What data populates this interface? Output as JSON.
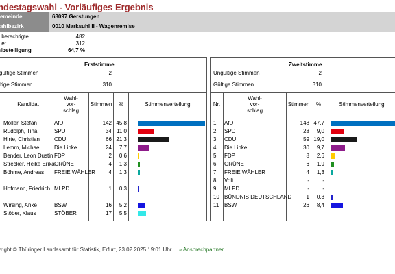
{
  "title": "ndestagswahl - Vorläufiges Ergebnis",
  "header": {
    "gemeinde_label": "emeinde",
    "gemeinde_value": "63097   Gerstungen",
    "bezirk_label": "ahlbezirk",
    "bezirk_value": "0010   Marksuhl II - Wagenremise"
  },
  "stats": [
    {
      "label": "hlberechtigte",
      "value": "482"
    },
    {
      "label": "hler",
      "value": "312"
    },
    {
      "label": "hlbeteiligung",
      "value": "64,7 %"
    }
  ],
  "erststimme": {
    "title": "Erststimme",
    "invalid_label": "gültige Stimmen",
    "invalid_value": "2",
    "valid_label": "ltige Stimmen",
    "valid_value": "310",
    "columns": {
      "kandidat": "Kandidat",
      "wahl1": "Wahl-",
      "wahl2": "vor-",
      "wahl3": "schlag",
      "stimmen": "Stimmen",
      "pct": "%",
      "verteilung": "Stimmenverteilung"
    },
    "rows": [
      {
        "name": "Möller, Stefan",
        "party": "AfD",
        "votes": "142",
        "pct": "45,8",
        "p": 45.8,
        "color": "#0070c0"
      },
      {
        "name": "Rudolph, Tina",
        "party": "SPD",
        "votes": "34",
        "pct": "11,0",
        "p": 11.0,
        "color": "#e3000f"
      },
      {
        "name": "Hirte, Christian",
        "party": "CDU",
        "votes": "66",
        "pct": "21,3",
        "p": 21.3,
        "color": "#1a1a1a"
      },
      {
        "name": "Lemm, Michael",
        "party": "Die Linke",
        "votes": "24",
        "pct": "7,7",
        "p": 7.7,
        "color": "#8e1c8a"
      },
      {
        "name": "Bender, Leon Dustin",
        "party": "FDP",
        "votes": "2",
        "pct": "0,6",
        "p": 0.6,
        "color": "#ffcc00"
      },
      {
        "name": "Strecker, Heike Erika",
        "party": "GRÜNE",
        "votes": "4",
        "pct": "1,3",
        "p": 1.3,
        "color": "#1f8f1f"
      },
      {
        "name": "Böhme, Andreas",
        "party": "FREIE WÄHLER",
        "votes": "4",
        "pct": "1,3",
        "p": 1.3,
        "color": "#0aa89e"
      },
      {
        "name": "",
        "party": "",
        "votes": "",
        "pct": "",
        "p": 0,
        "color": "#ffffff"
      },
      {
        "name": "Hofmann, Friedrich",
        "party": "MLPD",
        "votes": "1",
        "pct": "0,3",
        "p": 0.3,
        "color": "#2222cc"
      },
      {
        "name": "",
        "party": "",
        "votes": "",
        "pct": "",
        "p": 0,
        "color": "#ffffff"
      },
      {
        "name": "Wirsing, Anke",
        "party": "BSW",
        "votes": "16",
        "pct": "5,2",
        "p": 5.2,
        "color": "#1515e0"
      },
      {
        "name": "Stöber, Klaus",
        "party": "STÖBER",
        "votes": "17",
        "pct": "5,5",
        "p": 5.5,
        "color": "#33e8e8"
      }
    ]
  },
  "zweitstimme": {
    "title": "Zweitstimme",
    "invalid_label": "Ungültige Stimmen",
    "invalid_value": "2",
    "valid_label": "Gültige Stimmen",
    "valid_value": "310",
    "columns": {
      "nr": "Nr.",
      "wahl1": "Wahl-",
      "wahl2": "vor-",
      "wahl3": "schlag",
      "stimmen": "Stimmen",
      "pct": "%",
      "verteilung": "Stimmenverteilung"
    },
    "rows": [
      {
        "nr": "1",
        "party": "AfD",
        "votes": "148",
        "pct": "47,7",
        "p": 47.7,
        "color": "#0070c0"
      },
      {
        "nr": "2",
        "party": "SPD",
        "votes": "28",
        "pct": "9,0",
        "p": 9.0,
        "color": "#e3000f"
      },
      {
        "nr": "3",
        "party": "CDU",
        "votes": "59",
        "pct": "19,0",
        "p": 19.0,
        "color": "#1a1a1a"
      },
      {
        "nr": "4",
        "party": "Die Linke",
        "votes": "30",
        "pct": "9,7",
        "p": 9.7,
        "color": "#8e1c8a"
      },
      {
        "nr": "5",
        "party": "FDP",
        "votes": "8",
        "pct": "2,6",
        "p": 2.6,
        "color": "#ffcc00"
      },
      {
        "nr": "6",
        "party": "GRÜNE",
        "votes": "6",
        "pct": "1,9",
        "p": 1.9,
        "color": "#1f8f1f"
      },
      {
        "nr": "7",
        "party": "FREIE WÄHLER",
        "votes": "4",
        "pct": "1,3",
        "p": 1.3,
        "color": "#0aa89e"
      },
      {
        "nr": "8",
        "party": "Volt",
        "votes": "-",
        "pct": "-",
        "p": 0,
        "color": "#ffffff"
      },
      {
        "nr": "9",
        "party": "MLPD",
        "votes": "-",
        "pct": "-",
        "p": 0,
        "color": "#ffffff"
      },
      {
        "nr": "10",
        "party": "BÜNDNIS DEUTSCHLAND",
        "votes": "1",
        "pct": "0,3",
        "p": 0.3,
        "color": "#2222cc"
      },
      {
        "nr": "11",
        "party": "BSW",
        "votes": "26",
        "pct": "8,4",
        "p": 8.4,
        "color": "#1515e0"
      }
    ]
  },
  "footer": {
    "copyright": "yright © Thüringer Landesamt für Statistik, Erfurt, 23.02.2025 19:01 Uhr",
    "link": "» Ansprechpartner"
  }
}
